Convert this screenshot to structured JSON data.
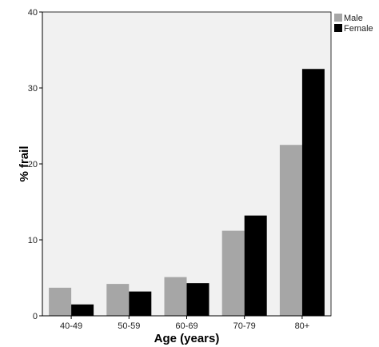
{
  "chart_data": {
    "type": "bar",
    "categories": [
      "40-49",
      "50-59",
      "60-69",
      "70-79",
      "80+"
    ],
    "series": [
      {
        "name": "Male",
        "values": [
          3.7,
          4.2,
          5.1,
          11.2,
          22.5
        ],
        "color": "#a6a6a6"
      },
      {
        "name": "Female",
        "values": [
          1.5,
          3.2,
          4.3,
          13.2,
          32.5
        ],
        "color": "#000000"
      }
    ],
    "xlabel": "Age (years)",
    "ylabel": "% frail",
    "ylim": [
      0,
      40
    ],
    "yticks": [
      "0",
      "10",
      "20",
      "30",
      "40"
    ],
    "legend_position": "top-right",
    "grid": false,
    "plot_background": "#f1f1f1"
  }
}
